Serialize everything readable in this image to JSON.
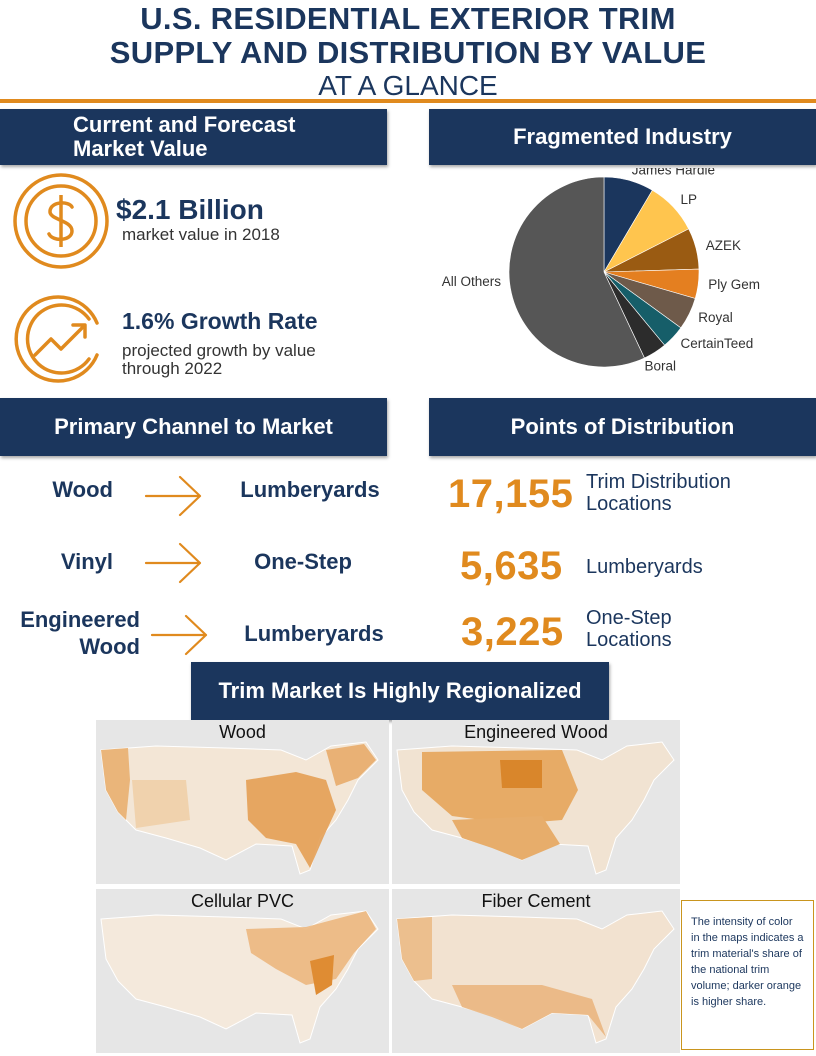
{
  "header": {
    "title_line1": "U.S. RESIDENTIAL EXTERIOR TRIM",
    "title_line2": "SUPPLY AND DISTRIBUTION BY VALUE",
    "subtitle": "AT A GLANCE"
  },
  "colors": {
    "navy": "#1b365d",
    "orange": "#e08a1e",
    "map_background": "#e6e6e6"
  },
  "market_value": {
    "heading_line1": "Current and Forecast",
    "heading_line2": "Market Value",
    "value_icon": "dollar-coin-icon",
    "value": "$2.1 Billion",
    "value_caption": "market value in 2018",
    "growth_icon": "growth-chart-icon",
    "growth": "1.6% Growth Rate",
    "growth_caption_line1": "projected growth by value",
    "growth_caption_line2": "through 2022"
  },
  "industry": {
    "heading": "Fragmented Industry"
  },
  "chart_data": {
    "type": "pie",
    "title": "",
    "unit": "percent share (estimated)",
    "slices": [
      {
        "label": "James Hardie",
        "value": 8.5,
        "color": "#1b365d"
      },
      {
        "label": "LP",
        "value": 9.0,
        "color": "#ffc54e"
      },
      {
        "label": "AZEK",
        "value": 7.0,
        "color": "#9a5b12"
      },
      {
        "label": "Ply Gem",
        "value": 5.0,
        "color": "#e47f20"
      },
      {
        "label": "Royal",
        "value": 5.5,
        "color": "#6e5a4a"
      },
      {
        "label": "CertainTeed",
        "value": 4.0,
        "color": "#165e69"
      },
      {
        "label": "Boral",
        "value": 4.0,
        "color": "#2c2c2c"
      },
      {
        "label": "All Others",
        "value": 57.0,
        "color": "#565656"
      }
    ]
  },
  "channel": {
    "heading": "Primary Channel to Market",
    "arrow_icon": "right-arrow-icon",
    "rows": [
      {
        "material_line1": "Wood",
        "material_line2": "",
        "channel": "Lumberyards"
      },
      {
        "material_line1": "Vinyl",
        "material_line2": "",
        "channel": "One-Step"
      },
      {
        "material_line1": "Engineered",
        "material_line2": "Wood",
        "channel": "Lumberyards"
      }
    ]
  },
  "distribution": {
    "heading": "Points of Distribution",
    "rows": [
      {
        "number": "17,155",
        "label_line1": "Trim Distribution",
        "label_line2": "Locations"
      },
      {
        "number": "5,635",
        "label_line1": "Lumberyards",
        "label_line2": ""
      },
      {
        "number": "3,225",
        "label_line1": "One-Step",
        "label_line2": "Locations"
      }
    ]
  },
  "regional": {
    "heading": "Trim Market Is Highly Regionalized",
    "maps": [
      {
        "title": "Wood"
      },
      {
        "title": "Engineered Wood"
      },
      {
        "title": "Cellular PVC"
      },
      {
        "title": "Fiber Cement"
      }
    ],
    "note": "The intensity of color in the maps indicates a trim material's share of the national trim volume; darker orange is higher share."
  }
}
